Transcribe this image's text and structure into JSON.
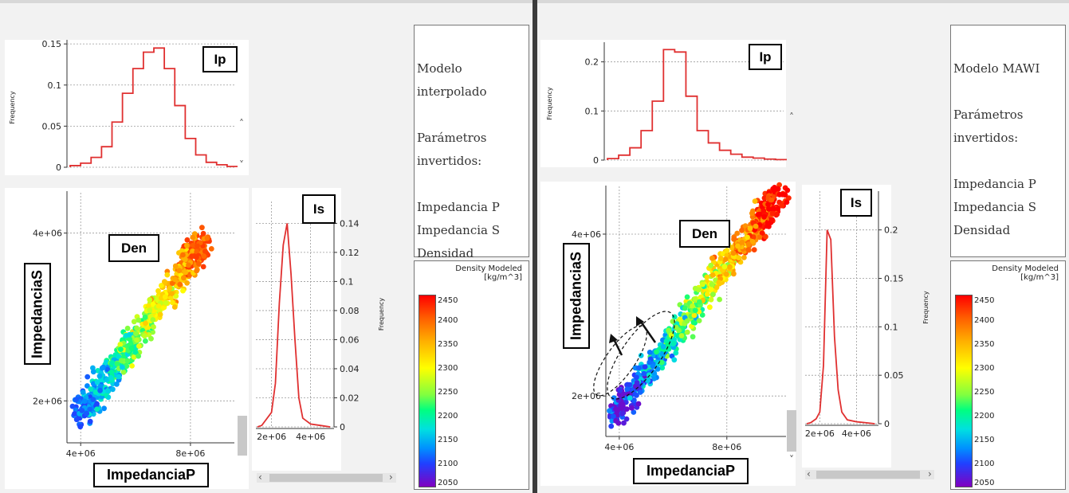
{
  "colors": {
    "hist": "#e03030"
  },
  "left": {
    "label_ip": "Ip",
    "label_is": "Is",
    "label_den": "Den",
    "xlabel": "ImpedanciaP",
    "ylabel": "ImpedanciaS",
    "freq_label": "Frequency",
    "info": {
      "model": "Modelo interpolado",
      "params1": "Parámetros",
      "params2": "invertidos:",
      "p1": "Impedancia P",
      "p2": "Impedancia S",
      "p3": "Densidad"
    },
    "colorbar": {
      "title1": "Density Modeled",
      "title2": "[kg/m^3]",
      "ticks": [
        "2450",
        "2400",
        "2350",
        "2300",
        "2250",
        "2200",
        "2150",
        "2100",
        "2050"
      ]
    }
  },
  "right": {
    "label_ip": "Ip",
    "label_is": "Is",
    "label_den": "Den",
    "xlabel": "ImpedanciaP",
    "ylabel": "ImpedanciaS",
    "freq_label": "Frequency",
    "info": {
      "model": "Modelo MAWI",
      "params1": "Parámetros",
      "params2": "invertidos:",
      "p1": "Impedancia P",
      "p2": "Impedancia S",
      "p3": "Densidad"
    },
    "colorbar": {
      "title1": "Density Modeled",
      "title2": "[kg/m^3]",
      "ticks": [
        "2450",
        "2400",
        "2350",
        "2300",
        "2250",
        "2200",
        "2150",
        "2100",
        "2050"
      ]
    }
  },
  "chart_data": [
    {
      "type": "line",
      "panel": "left",
      "name": "Ip histogram",
      "xlabel": "",
      "ylabel": "Frequency",
      "y_ticks": [
        "0",
        "0.05",
        "0.1",
        "0.15"
      ],
      "ylim": [
        0,
        0.155
      ],
      "x": [
        2.5,
        3.0,
        3.5,
        4.0,
        4.5,
        5.0,
        5.5,
        6.0,
        6.5,
        7.0,
        7.5,
        8.0,
        8.5,
        9.0,
        9.5,
        10.0
      ],
      "values": [
        0.002,
        0.005,
        0.012,
        0.025,
        0.055,
        0.09,
        0.12,
        0.14,
        0.145,
        0.12,
        0.075,
        0.035,
        0.015,
        0.006,
        0.003,
        0.001
      ]
    },
    {
      "type": "line",
      "panel": "left",
      "name": "Is histogram",
      "orientation": "horizontal",
      "ylabel": "Frequency",
      "x_ticks": [
        "2e+06",
        "4e+06"
      ],
      "freq_ticks": [
        "0",
        "0.02",
        "0.04",
        "0.06",
        "0.08",
        "0.1",
        "0.12",
        "0.14"
      ],
      "x": [
        1.5,
        2.0,
        2.2,
        2.4,
        2.6,
        2.8,
        3.0,
        3.2,
        3.4,
        3.6,
        4.0,
        4.5,
        5.0
      ],
      "values": [
        0.001,
        0.01,
        0.03,
        0.085,
        0.125,
        0.14,
        0.105,
        0.06,
        0.02,
        0.006,
        0.002,
        0.001,
        0.0
      ]
    },
    {
      "type": "scatter",
      "panel": "left",
      "xlabel": "ImpedanciaP",
      "ylabel": "ImpedanciaS",
      "x_ticks": [
        "4e+06",
        "8e+06"
      ],
      "y_ticks": [
        "2e+06",
        "4e+06"
      ],
      "xlim": [
        3500000.0,
        9600000.0
      ],
      "ylim": [
        1500000.0,
        4500000.0
      ],
      "color_by": "Density Modeled",
      "n_points": 700,
      "seed": 11,
      "trend": {
        "x0": 3900000.0,
        "y0": 1800000.0,
        "x1": 8500000.0,
        "y1": 3900000.0,
        "spread": 180000.0,
        "dmin": 2100,
        "dmax": 2420
      }
    },
    {
      "type": "line",
      "panel": "right",
      "name": "Ip histogram",
      "ylabel": "Frequency",
      "y_ticks": [
        "0",
        "0.1",
        "0.2"
      ],
      "ylim": [
        0,
        0.24
      ],
      "x": [
        2.5,
        3.0,
        3.5,
        4.0,
        4.5,
        5.0,
        5.5,
        6.0,
        6.5,
        7.0,
        7.5,
        8.0,
        8.5,
        9.0,
        9.5,
        10.0
      ],
      "values": [
        0.003,
        0.01,
        0.025,
        0.06,
        0.12,
        0.225,
        0.22,
        0.13,
        0.06,
        0.035,
        0.02,
        0.012,
        0.006,
        0.004,
        0.002,
        0.001
      ]
    },
    {
      "type": "line",
      "panel": "right",
      "name": "Is histogram",
      "orientation": "horizontal",
      "ylabel": "Frequency",
      "x_ticks": [
        "2e+06",
        "4e+06"
      ],
      "freq_ticks": [
        "0",
        "0.05",
        "0.1",
        "0.15",
        "0.2"
      ],
      "x": [
        1.5,
        1.8,
        2.0,
        2.2,
        2.4,
        2.6,
        2.8,
        3.0,
        3.2,
        3.5,
        4.0,
        4.5,
        5.0
      ],
      "values": [
        0.001,
        0.005,
        0.012,
        0.06,
        0.2,
        0.19,
        0.09,
        0.035,
        0.012,
        0.004,
        0.002,
        0.001,
        0.0
      ]
    },
    {
      "type": "scatter",
      "panel": "right",
      "xlabel": "ImpedanciaP",
      "ylabel": "ImpedanciaS",
      "x_ticks": [
        "4e+06",
        "8e+06"
      ],
      "y_ticks": [
        "2e+06",
        "4e+06"
      ],
      "xlim": [
        3500000.0,
        10200000.0
      ],
      "ylim": [
        1500000.0,
        4600000.0
      ],
      "color_by": "Density Modeled",
      "n_points": 800,
      "seed": 29,
      "trend": {
        "x0": 3800000.0,
        "y0": 1750000.0,
        "x1": 10000000.0,
        "y1": 4500000.0,
        "spread": 160000.0,
        "dmin": 2060,
        "dmax": 2460
      }
    }
  ]
}
